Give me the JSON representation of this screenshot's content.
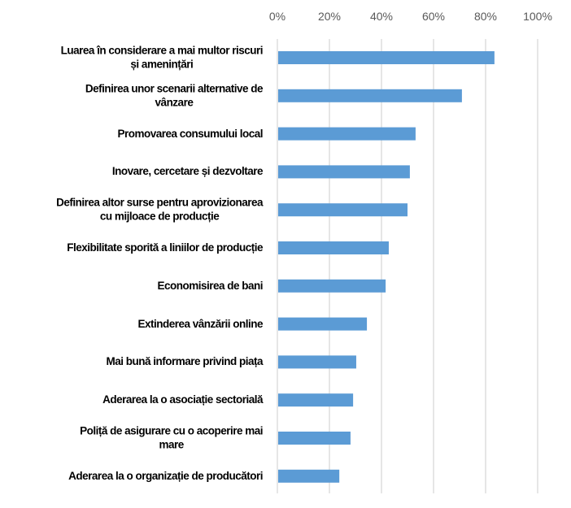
{
  "chart_data": {
    "type": "bar",
    "orientation": "horizontal",
    "title": "",
    "xlabel": "",
    "ylabel": "",
    "xlim": [
      0,
      100
    ],
    "x_ticks": [
      "0%",
      "20%",
      "40%",
      "60%",
      "80%",
      "100%"
    ],
    "x_tick_values": [
      0,
      20,
      40,
      60,
      80,
      100
    ],
    "grid": true,
    "bar_color": "#5B9BD5",
    "categories": [
      [
        "Luarea în considerare a mai multor riscuri",
        "și  amenințări"
      ],
      [
        "Definirea unor scenarii alternative de",
        "vânzare"
      ],
      [
        "Promovarea consumului local"
      ],
      [
        "Inovare, cercetare și dezvoltare"
      ],
      [
        "Definirea altor surse pentru aprovizionarea",
        "cu mijloace de producție"
      ],
      [
        "Flexibilitate sporită a liniilor de producție"
      ],
      [
        "Economisirea de bani"
      ],
      [
        "Extinderea vânzării online"
      ],
      [
        "Mai bună informare privind piața"
      ],
      [
        "Aderarea la o asociație sectorială"
      ],
      [
        "Poliță de asigurare cu o acoperire mai",
        "mare"
      ],
      [
        "Aderarea la o organizație de producători"
      ]
    ],
    "values": [
      83.4,
      70.9,
      53.1,
      50.9,
      50.0,
      42.8,
      41.6,
      34.4,
      30.3,
      29.1,
      28.1,
      23.8
    ]
  }
}
